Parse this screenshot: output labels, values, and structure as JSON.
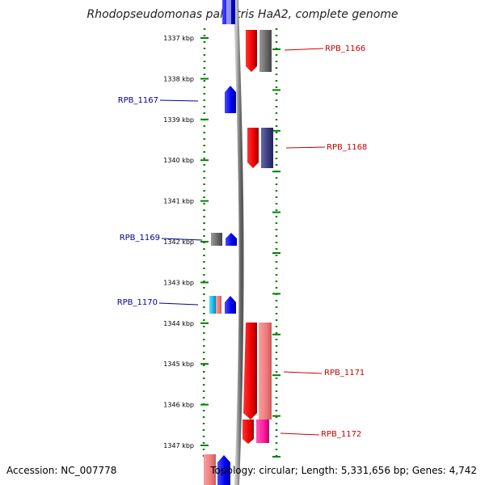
{
  "title": "Rhodopseudomonas palustris HaA2, complete genome",
  "axis": {
    "unit": "kbp",
    "ticks": [
      1337,
      1338,
      1339,
      1340,
      1341,
      1342,
      1343,
      1344,
      1345,
      1346,
      1347
    ],
    "tick_labels": [
      "1337 kbp",
      "1338 kbp",
      "1339 kbp",
      "1340 kbp",
      "1341 kbp",
      "1342 kbp",
      "1343 kbp",
      "1344 kbp",
      "1345 kbp",
      "1346 kbp",
      "1347 kbp"
    ]
  },
  "genes": [
    {
      "label": "RPB_1166",
      "strand": "reverse",
      "color": "#cc0000"
    },
    {
      "label": "RPB_1167",
      "strand": "forward",
      "color": "#000099"
    },
    {
      "label": "RPB_1168",
      "strand": "reverse",
      "color": "#cc0000"
    },
    {
      "label": "RPB_1169",
      "strand": "forward",
      "color": "#000099"
    },
    {
      "label": "RPB_1170",
      "strand": "forward",
      "color": "#000099"
    },
    {
      "label": "RPB_1171",
      "strand": "reverse",
      "color": "#cc0000"
    },
    {
      "label": "RPB_1172",
      "strand": "reverse",
      "color": "#cc0000"
    }
  ],
  "colors": {
    "forward_label": "#000099",
    "reverse_label": "#cc0000",
    "dotted_track": "#008000",
    "backbone": "#888888"
  },
  "footer": {
    "accession": "Accession: NC_007778",
    "summary": "Topology: circular; Length: 5,331,656 bp; Genes: 4,742"
  }
}
